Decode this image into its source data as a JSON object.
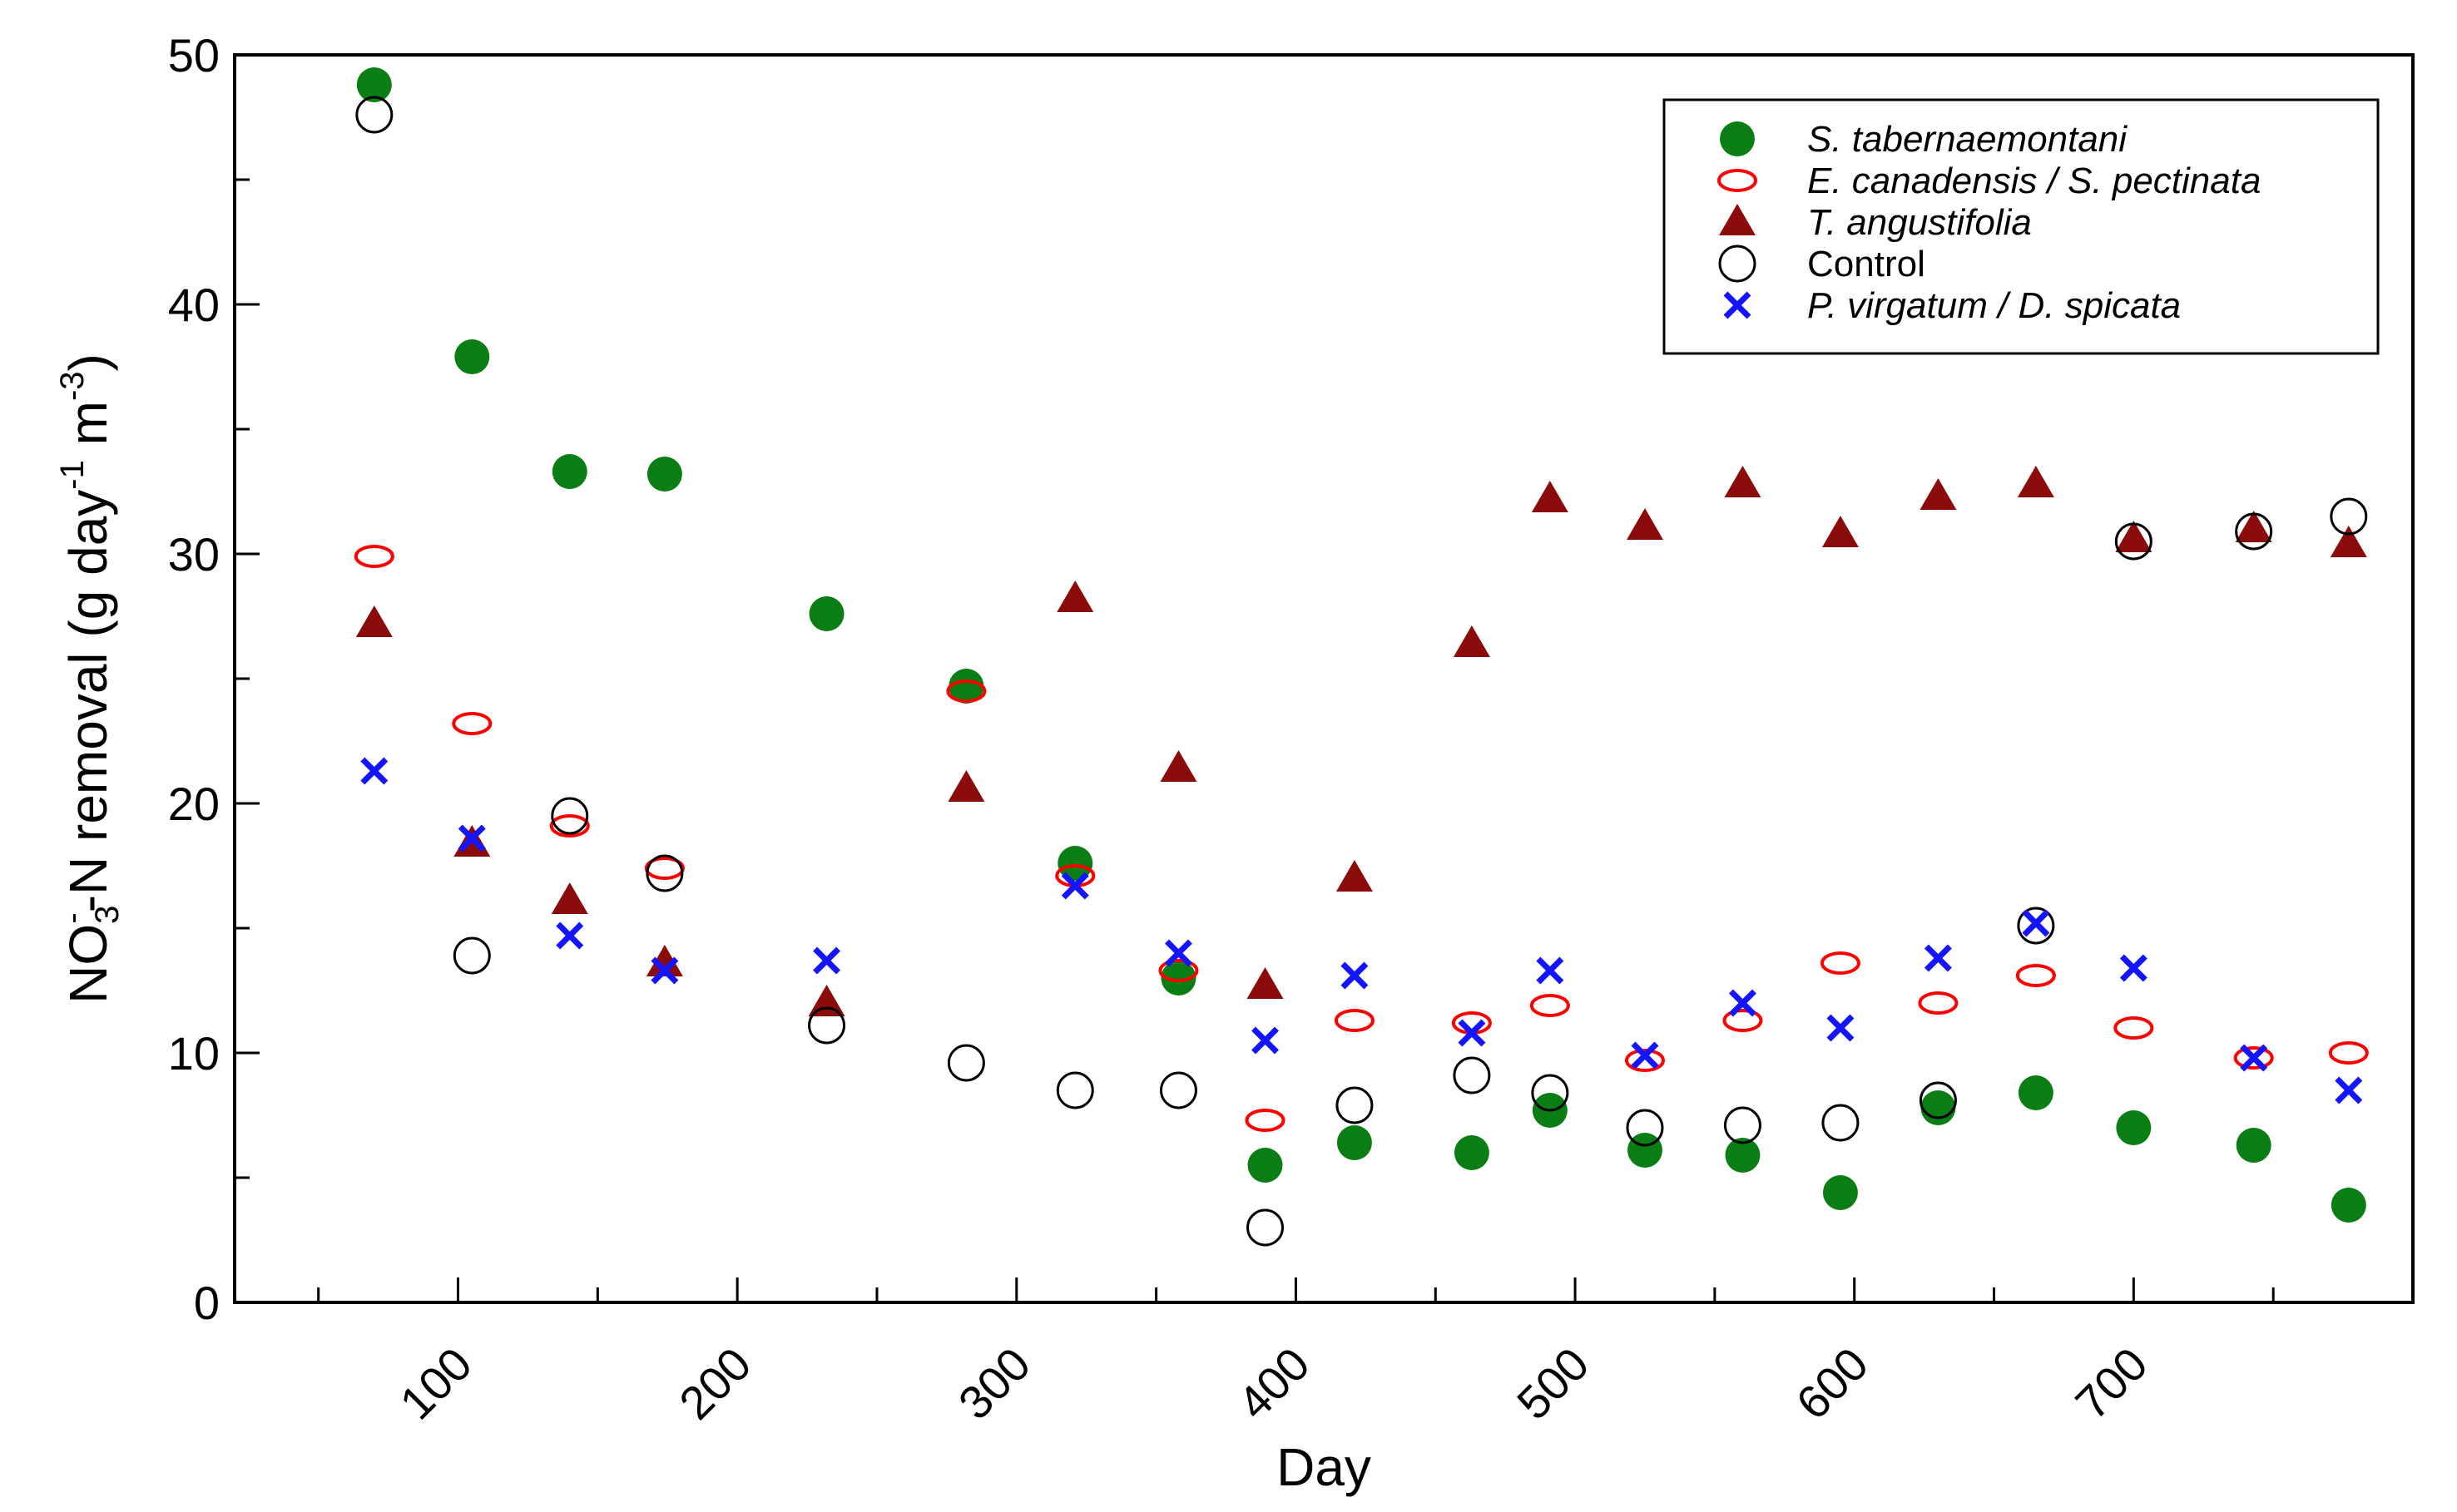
{
  "chart_data": {
    "type": "scatter",
    "xlabel": "Day",
    "ylabel": {
      "prefix": "NO",
      "sub3": "3",
      "sup_minus": "-",
      "middle": "-N removal (g day",
      "sup1": "-1",
      "m": " m",
      "sup3": "-3",
      "end": ")"
    },
    "xlim": [
      20,
      800
    ],
    "ylim": [
      0,
      50
    ],
    "x_tick_labels": [
      "100",
      "200",
      "300",
      "400",
      "500",
      "600",
      "700"
    ],
    "y_tick_labels": [
      "0",
      "10",
      "20",
      "30",
      "40",
      "50"
    ],
    "legend_position": "top-right",
    "series": [
      {
        "name": "S. tabernaemontani",
        "marker": "filled-circle",
        "color": "#0a7d14",
        "italic": true,
        "x": [
          70,
          105,
          140,
          174,
          232,
          282,
          321,
          358,
          389,
          421,
          463,
          491,
          525,
          560,
          595,
          630,
          665,
          700,
          743,
          777
        ],
        "y": [
          48.8,
          37.9,
          33.3,
          33.2,
          27.6,
          24.7,
          17.6,
          13.0,
          5.5,
          6.4,
          6.0,
          7.7,
          6.1,
          5.9,
          4.4,
          7.8,
          8.4,
          7.0,
          6.3,
          3.9
        ]
      },
      {
        "name": "E. canadensis / S. pectinata",
        "marker": "open-ellipse",
        "color": "#ff0000",
        "italic": true,
        "x": [
          70,
          105,
          140,
          174,
          282,
          321,
          358,
          389,
          421,
          463,
          491,
          525,
          560,
          595,
          630,
          665,
          700,
          743,
          777
        ],
        "y": [
          29.9,
          23.2,
          19.1,
          17.4,
          24.5,
          17.1,
          13.3,
          7.3,
          11.3,
          11.2,
          11.9,
          9.7,
          11.3,
          13.6,
          12.0,
          13.1,
          11.0,
          9.8,
          10.0
        ]
      },
      {
        "name": "T. angustifolia",
        "marker": "filled-triangle",
        "color": "#8b0a0a",
        "italic": true,
        "x": [
          70,
          105,
          140,
          174,
          232,
          282,
          321,
          358,
          389,
          421,
          463,
          491,
          525,
          560,
          595,
          630,
          665,
          700,
          743,
          777
        ],
        "y": [
          27.2,
          18.4,
          16.1,
          13.6,
          12.0,
          20.6,
          28.2,
          21.4,
          12.7,
          17.0,
          26.4,
          32.2,
          31.1,
          32.8,
          30.8,
          32.3,
          32.8,
          30.6,
          31.0,
          30.4
        ]
      },
      {
        "name": "Control",
        "marker": "open-circle",
        "color": "#000000",
        "italic": false,
        "x": [
          70,
          105,
          140,
          174,
          232,
          282,
          321,
          358,
          389,
          421,
          463,
          491,
          525,
          560,
          595,
          630,
          665,
          700,
          743,
          777
        ],
        "y": [
          47.6,
          13.9,
          19.5,
          17.2,
          11.1,
          9.6,
          8.5,
          8.5,
          3.0,
          7.9,
          9.1,
          8.4,
          7.0,
          7.1,
          7.2,
          8.1,
          15.1,
          30.5,
          30.9,
          31.5
        ]
      },
      {
        "name": "P. virgatum / D. spicata",
        "marker": "x-cross",
        "color": "#1414ff",
        "italic": true,
        "x": [
          70,
          105,
          140,
          174,
          232,
          321,
          358,
          389,
          421,
          463,
          491,
          525,
          560,
          595,
          630,
          665,
          700,
          743,
          777
        ],
        "y": [
          21.3,
          18.6,
          14.7,
          13.3,
          13.7,
          16.7,
          14.0,
          10.5,
          13.1,
          10.8,
          13.3,
          9.9,
          12.0,
          11.0,
          13.8,
          15.2,
          13.4,
          9.8,
          8.5
        ]
      }
    ]
  }
}
